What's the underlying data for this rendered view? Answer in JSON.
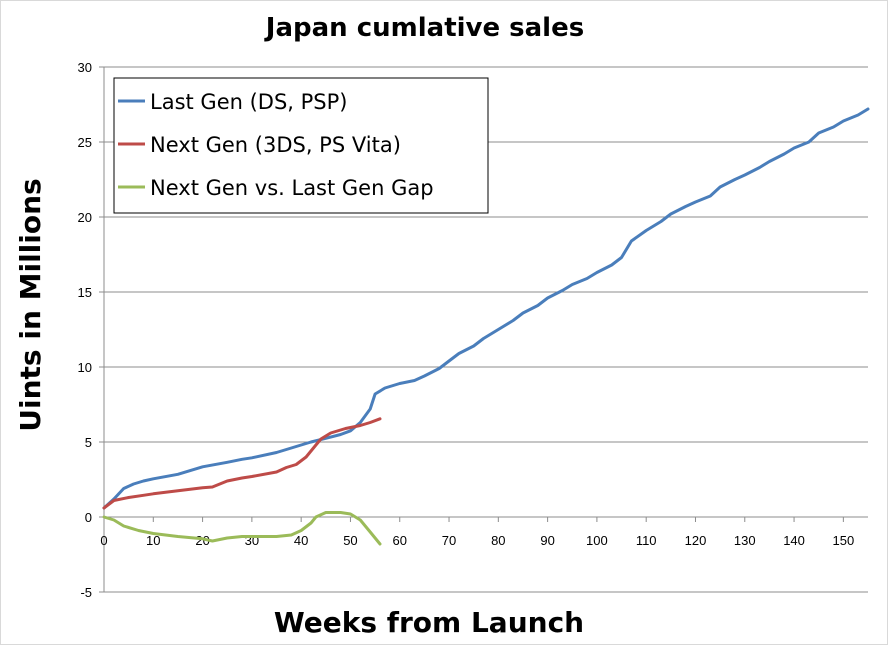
{
  "chart_data": {
    "type": "line",
    "title": "Japan cumlative sales",
    "xlabel": "Weeks from Launch",
    "ylabel": "Uints in Millions",
    "xlim": [
      0,
      155
    ],
    "ylim": [
      -5,
      30
    ],
    "x_ticks": [
      0,
      10,
      20,
      30,
      40,
      50,
      60,
      70,
      80,
      90,
      100,
      110,
      120,
      130,
      140,
      150
    ],
    "y_ticks": [
      -5,
      0,
      5,
      10,
      15,
      20,
      25,
      30
    ],
    "grid": "horizontal",
    "legend_position": "top-left",
    "series": [
      {
        "name": "Last Gen (DS, PSP)",
        "color": "#4a7ebb",
        "points": [
          [
            0,
            0.6
          ],
          [
            2,
            1.2
          ],
          [
            4,
            1.9
          ],
          [
            6,
            2.2
          ],
          [
            8,
            2.4
          ],
          [
            10,
            2.55
          ],
          [
            15,
            2.85
          ],
          [
            20,
            3.35
          ],
          [
            25,
            3.65
          ],
          [
            28,
            3.85
          ],
          [
            30,
            3.95
          ],
          [
            35,
            4.3
          ],
          [
            38,
            4.6
          ],
          [
            42,
            5.0
          ],
          [
            45,
            5.25
          ],
          [
            48,
            5.5
          ],
          [
            50,
            5.75
          ],
          [
            52,
            6.3
          ],
          [
            54,
            7.2
          ],
          [
            55,
            8.2
          ],
          [
            57,
            8.6
          ],
          [
            60,
            8.9
          ],
          [
            63,
            9.1
          ],
          [
            65,
            9.4
          ],
          [
            68,
            9.9
          ],
          [
            70,
            10.4
          ],
          [
            72,
            10.9
          ],
          [
            75,
            11.4
          ],
          [
            77,
            11.9
          ],
          [
            80,
            12.5
          ],
          [
            83,
            13.1
          ],
          [
            85,
            13.6
          ],
          [
            88,
            14.1
          ],
          [
            90,
            14.6
          ],
          [
            93,
            15.1
          ],
          [
            95,
            15.5
          ],
          [
            98,
            15.9
          ],
          [
            100,
            16.3
          ],
          [
            103,
            16.8
          ],
          [
            105,
            17.3
          ],
          [
            107,
            18.4
          ],
          [
            110,
            19.1
          ],
          [
            113,
            19.7
          ],
          [
            115,
            20.2
          ],
          [
            118,
            20.7
          ],
          [
            120,
            21.0
          ],
          [
            123,
            21.4
          ],
          [
            125,
            22.0
          ],
          [
            128,
            22.5
          ],
          [
            130,
            22.8
          ],
          [
            133,
            23.3
          ],
          [
            135,
            23.7
          ],
          [
            138,
            24.2
          ],
          [
            140,
            24.6
          ],
          [
            143,
            25.0
          ],
          [
            145,
            25.6
          ],
          [
            148,
            26.0
          ],
          [
            150,
            26.4
          ],
          [
            153,
            26.8
          ],
          [
            155,
            27.2
          ]
        ]
      },
      {
        "name": "Next Gen (3DS, PS Vita)",
        "color": "#be4b48",
        "points": [
          [
            0,
            0.6
          ],
          [
            2,
            1.1
          ],
          [
            5,
            1.3
          ],
          [
            8,
            1.45
          ],
          [
            10,
            1.55
          ],
          [
            15,
            1.75
          ],
          [
            20,
            1.95
          ],
          [
            22,
            2.0
          ],
          [
            25,
            2.4
          ],
          [
            28,
            2.6
          ],
          [
            30,
            2.7
          ],
          [
            35,
            3.0
          ],
          [
            37,
            3.3
          ],
          [
            39,
            3.5
          ],
          [
            41,
            4.0
          ],
          [
            43,
            4.8
          ],
          [
            44,
            5.2
          ],
          [
            46,
            5.6
          ],
          [
            49,
            5.9
          ],
          [
            52,
            6.1
          ],
          [
            54,
            6.3
          ],
          [
            56,
            6.55
          ]
        ]
      },
      {
        "name": "Next Gen vs. Last Gen Gap",
        "color": "#9bbb59",
        "points": [
          [
            0,
            0.0
          ],
          [
            2,
            -0.2
          ],
          [
            4,
            -0.6
          ],
          [
            7,
            -0.9
          ],
          [
            10,
            -1.1
          ],
          [
            15,
            -1.3
          ],
          [
            20,
            -1.45
          ],
          [
            22,
            -1.6
          ],
          [
            25,
            -1.4
          ],
          [
            28,
            -1.3
          ],
          [
            32,
            -1.3
          ],
          [
            35,
            -1.3
          ],
          [
            38,
            -1.2
          ],
          [
            40,
            -0.9
          ],
          [
            42,
            -0.4
          ],
          [
            43,
            0.0
          ],
          [
            45,
            0.3
          ],
          [
            48,
            0.3
          ],
          [
            50,
            0.2
          ],
          [
            52,
            -0.2
          ],
          [
            54,
            -1.0
          ],
          [
            56,
            -1.8
          ]
        ]
      }
    ]
  }
}
